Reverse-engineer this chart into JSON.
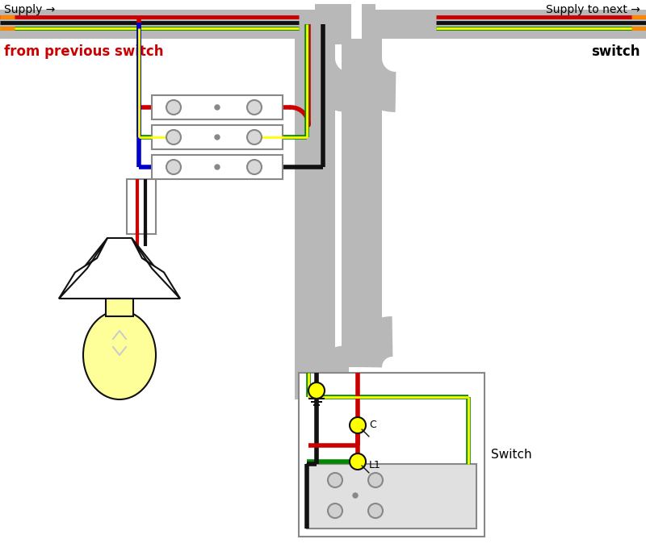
{
  "bg": "#ffffff",
  "gray": "#b8b8b8",
  "red": "#cc0000",
  "dark_red": "#880000",
  "black": "#111111",
  "green": "#008800",
  "yellow": "#ffff00",
  "blue": "#0000cc",
  "lamp_yellow": "#ffff99",
  "white": "#ffffff",
  "dg": "#888888",
  "orange": "#ff8800",
  "supply_label": "Supply →",
  "supply_next_label": "Supply to next →",
  "from_prev_label": "from previous switch",
  "switch_label": "switch",
  "switch_box_label": "Switch",
  "label_c": "C",
  "label_l1": "L1",
  "fig_w": 8.0,
  "fig_h": 6.94,
  "dpi": 100
}
